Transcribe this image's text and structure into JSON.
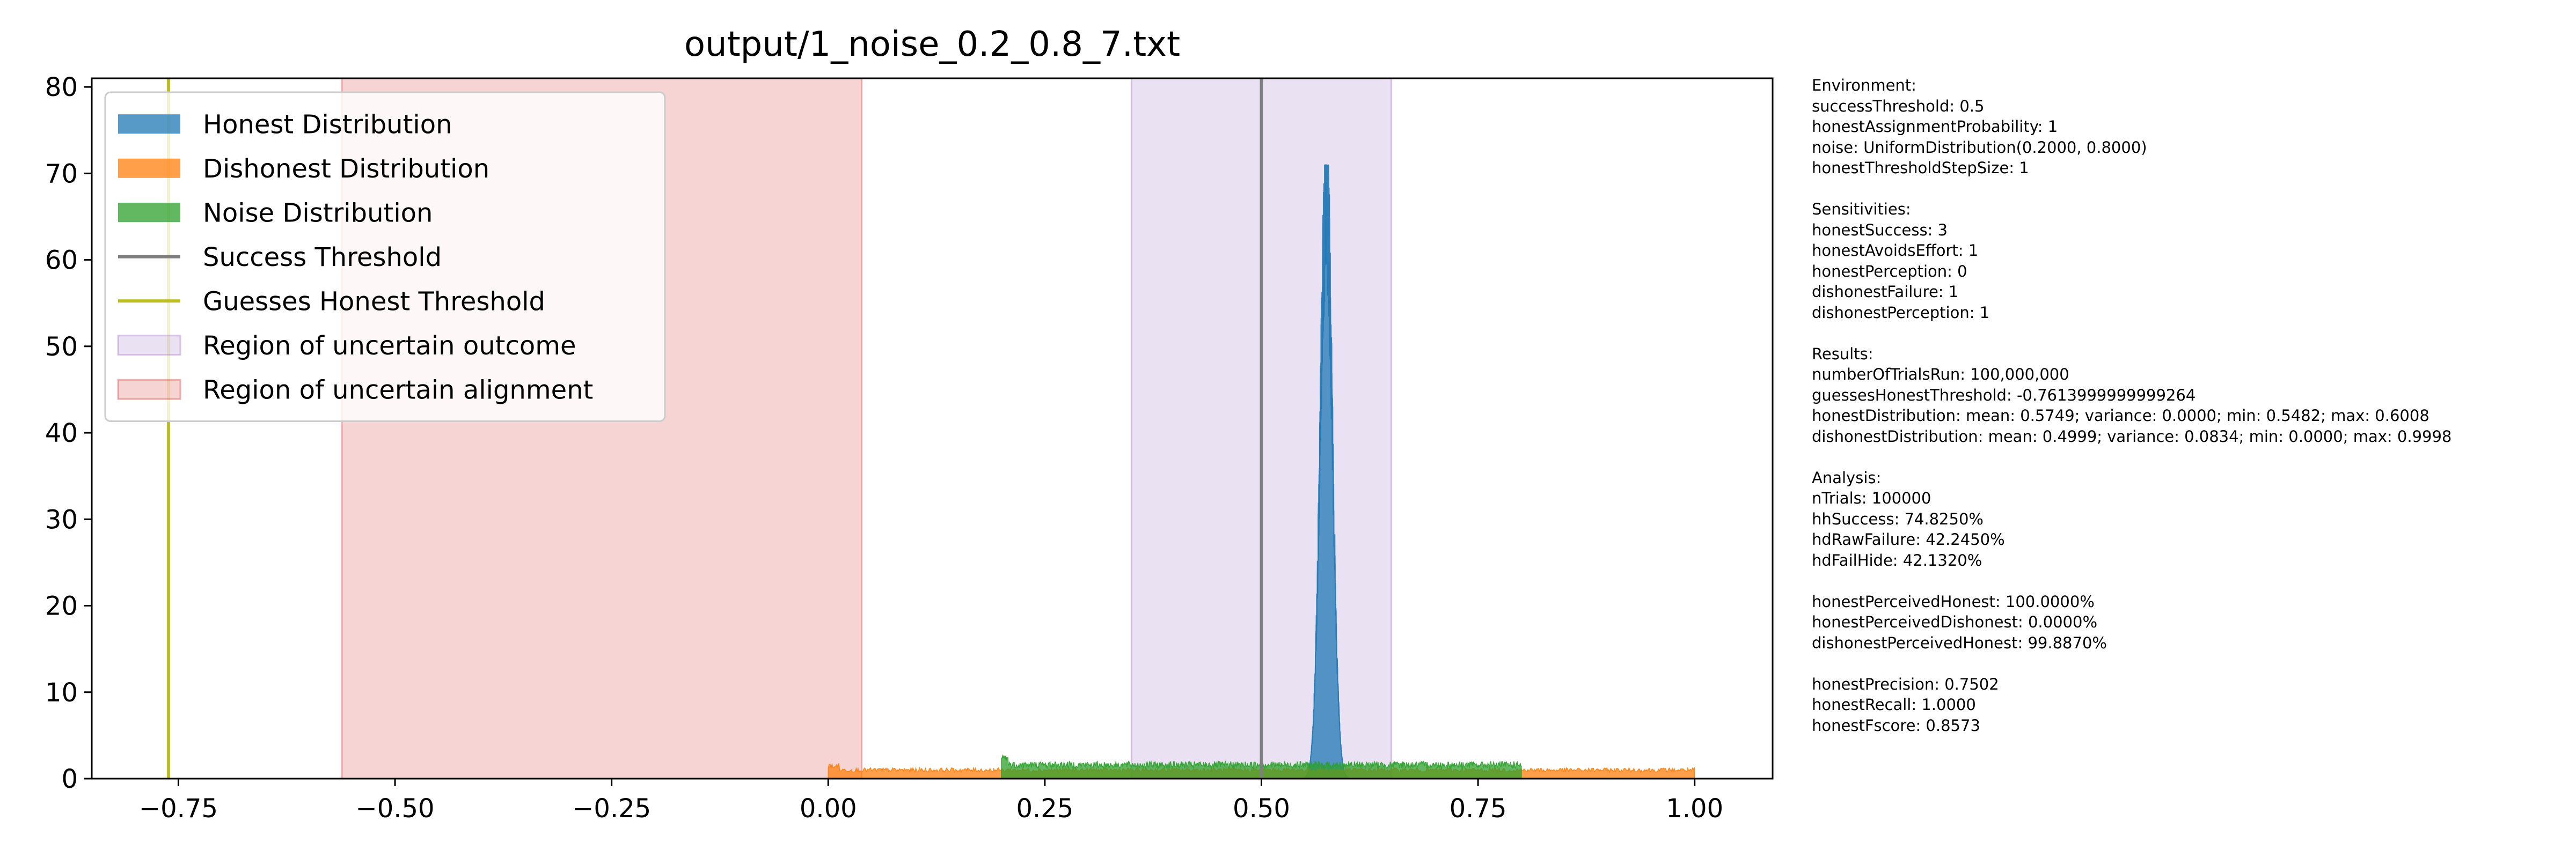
{
  "chart_data": {
    "type": "histogram",
    "title": "output/1_noise_0.2_0.8_7.txt",
    "xlabel": "",
    "ylabel": "",
    "xlim": [
      -0.85,
      1.09
    ],
    "ylim": [
      0,
      81
    ],
    "xticks": [
      {
        "value": -0.75,
        "label": "−0.75"
      },
      {
        "value": -0.5,
        "label": "−0.50"
      },
      {
        "value": -0.25,
        "label": "−0.25"
      },
      {
        "value": 0.0,
        "label": "0.00"
      },
      {
        "value": 0.25,
        "label": "0.25"
      },
      {
        "value": 0.5,
        "label": "0.50"
      },
      {
        "value": 0.75,
        "label": "0.75"
      },
      {
        "value": 1.0,
        "label": "1.00"
      }
    ],
    "yticks": [
      {
        "value": 0,
        "label": "0"
      },
      {
        "value": 10,
        "label": "10"
      },
      {
        "value": 20,
        "label": "20"
      },
      {
        "value": 30,
        "label": "30"
      },
      {
        "value": 40,
        "label": "40"
      },
      {
        "value": 50,
        "label": "50"
      },
      {
        "value": 60,
        "label": "60"
      },
      {
        "value": 70,
        "label": "70"
      },
      {
        "value": 80,
        "label": "80"
      }
    ],
    "grid": false,
    "legend_position": "upper-left",
    "series": [
      {
        "name": "Honest Distribution",
        "kind": "histogram",
        "color": "#1f77b4",
        "range": [
          0.5482,
          0.6008
        ],
        "peak_x": 0.5749,
        "peak_y": 71
      },
      {
        "name": "Dishonest Distribution",
        "kind": "histogram",
        "color": "#ff7f0e",
        "range": [
          0.0,
          0.9998
        ],
        "level": 1.0
      },
      {
        "name": "Noise Distribution",
        "kind": "histogram",
        "color": "#2ca02c",
        "range": [
          0.2,
          0.8
        ],
        "level": 1.6
      },
      {
        "name": "Success Threshold",
        "kind": "vline",
        "x": 0.5,
        "color": "#7f7f7f"
      },
      {
        "name": "Guesses Honest Threshold",
        "kind": "vline",
        "x": -0.7614,
        "color": "#bcbd22"
      },
      {
        "name": "Region of uncertain outcome",
        "kind": "vspan",
        "x0": 0.35,
        "x1": 0.65,
        "color": "#9467bd"
      },
      {
        "name": "Region of uncertain alignment",
        "kind": "vspan",
        "x0": -0.5614,
        "x1": 0.0386,
        "color": "#d62728"
      }
    ]
  },
  "sidebar": {
    "sections": [
      {
        "lines": [
          "Environment:",
          "successThreshold: 0.5",
          "honestAssignmentProbability: 1",
          "noise: UniformDistribution(0.2000, 0.8000)",
          "honestThresholdStepSize: 1"
        ]
      },
      {
        "lines": [
          "Sensitivities:",
          "honestSuccess: 3",
          "honestAvoidsEffort: 1",
          "honestPerception: 0",
          "dishonestFailure: 1",
          "dishonestPerception: 1"
        ]
      },
      {
        "lines": [
          "Results:",
          "numberOfTrialsRun: 100,000,000",
          "guessesHonestThreshold: -0.7613999999999264",
          "honestDistribution: mean: 0.5749; variance: 0.0000; min: 0.5482; max: 0.6008",
          "dishonestDistribution: mean: 0.4999; variance: 0.0834; min: 0.0000; max: 0.9998"
        ]
      },
      {
        "lines": [
          "Analysis:",
          "nTrials: 100000",
          "hhSuccess: 74.8250%",
          "hdRawFailure: 42.2450%",
          "hdFailHide: 42.1320%"
        ]
      },
      {
        "lines": [
          "honestPerceivedHonest: 100.0000%",
          "honestPerceivedDishonest: 0.0000%",
          "dishonestPerceivedHonest: 99.8870%"
        ]
      },
      {
        "lines": [
          "honestPrecision: 0.7502",
          "honestRecall: 1.0000",
          "honestFscore: 0.8573"
        ]
      }
    ]
  }
}
